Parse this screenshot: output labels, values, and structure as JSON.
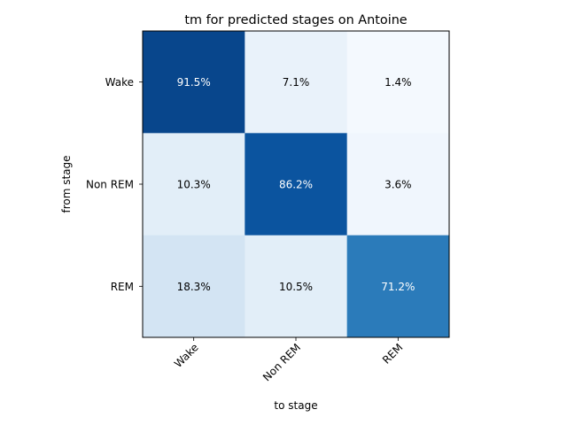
{
  "chart_data": {
    "type": "heatmap",
    "title": "tm for predicted stages on Antoine",
    "xlabel": "to stage",
    "ylabel": "from stage",
    "x_categories": [
      "Wake",
      "Non REM",
      "REM"
    ],
    "y_categories": [
      "Wake",
      "Non REM",
      "REM"
    ],
    "values": [
      [
        91.5,
        7.1,
        1.4
      ],
      [
        10.3,
        86.2,
        3.6
      ],
      [
        18.3,
        10.5,
        71.2
      ]
    ],
    "value_labels": [
      [
        "91.5%",
        "7.1%",
        "1.4%"
      ],
      [
        "10.3%",
        "86.2%",
        "3.6%"
      ],
      [
        "18.3%",
        "10.5%",
        "71.2%"
      ]
    ],
    "colormap": "Blues",
    "value_range": [
      0,
      100
    ],
    "colors": {
      "dark_text": "#000000",
      "light_text": "#ffffff"
    }
  }
}
